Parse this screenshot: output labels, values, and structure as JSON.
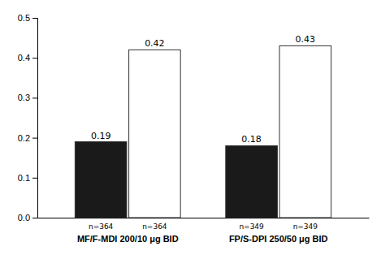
{
  "chart_data": {
    "type": "bar",
    "categories": [
      "MF/F-MDI 200/10 μg BID",
      "FP/S-DPI 250/50 μg BID"
    ],
    "series": [
      {
        "color": "#1a1a1a",
        "values": [
          0.19,
          0.18
        ],
        "n_labels": [
          "n=364",
          "n=349"
        ]
      },
      {
        "color": "#ffffff",
        "values": [
          0.42,
          0.43
        ],
        "n_labels": [
          "n=364",
          "n=349"
        ]
      }
    ],
    "ylim": [
      0,
      0.5
    ],
    "yticks": [
      {
        "value": 0,
        "label": "0.0"
      },
      0.1,
      0.2,
      0.3,
      0.4,
      0.5
    ],
    "data_labels": true,
    "grid": false
  }
}
